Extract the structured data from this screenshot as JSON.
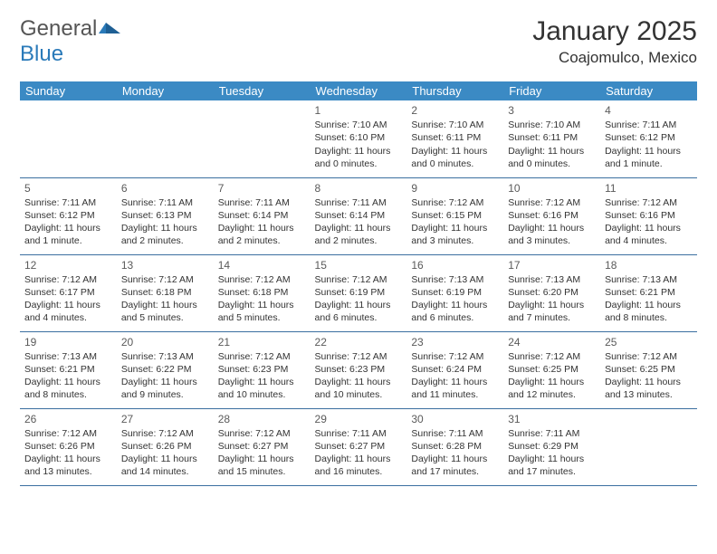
{
  "logo": {
    "word1": "General",
    "word2": "Blue"
  },
  "title": "January 2025",
  "location": "Coajomulco, Mexico",
  "colors": {
    "header_bg": "#3b8ac4",
    "header_text": "#ffffff",
    "rule": "#3b6fa0",
    "logo_gray": "#555555",
    "logo_blue": "#2a7ab9",
    "body_text": "#333333"
  },
  "weekdays": [
    "Sunday",
    "Monday",
    "Tuesday",
    "Wednesday",
    "Thursday",
    "Friday",
    "Saturday"
  ],
  "weeks": [
    [
      null,
      null,
      null,
      {
        "n": "1",
        "sr": "Sunrise: 7:10 AM",
        "ss": "Sunset: 6:10 PM",
        "d1": "Daylight: 11 hours",
        "d2": "and 0 minutes."
      },
      {
        "n": "2",
        "sr": "Sunrise: 7:10 AM",
        "ss": "Sunset: 6:11 PM",
        "d1": "Daylight: 11 hours",
        "d2": "and 0 minutes."
      },
      {
        "n": "3",
        "sr": "Sunrise: 7:10 AM",
        "ss": "Sunset: 6:11 PM",
        "d1": "Daylight: 11 hours",
        "d2": "and 0 minutes."
      },
      {
        "n": "4",
        "sr": "Sunrise: 7:11 AM",
        "ss": "Sunset: 6:12 PM",
        "d1": "Daylight: 11 hours",
        "d2": "and 1 minute."
      }
    ],
    [
      {
        "n": "5",
        "sr": "Sunrise: 7:11 AM",
        "ss": "Sunset: 6:12 PM",
        "d1": "Daylight: 11 hours",
        "d2": "and 1 minute."
      },
      {
        "n": "6",
        "sr": "Sunrise: 7:11 AM",
        "ss": "Sunset: 6:13 PM",
        "d1": "Daylight: 11 hours",
        "d2": "and 2 minutes."
      },
      {
        "n": "7",
        "sr": "Sunrise: 7:11 AM",
        "ss": "Sunset: 6:14 PM",
        "d1": "Daylight: 11 hours",
        "d2": "and 2 minutes."
      },
      {
        "n": "8",
        "sr": "Sunrise: 7:11 AM",
        "ss": "Sunset: 6:14 PM",
        "d1": "Daylight: 11 hours",
        "d2": "and 2 minutes."
      },
      {
        "n": "9",
        "sr": "Sunrise: 7:12 AM",
        "ss": "Sunset: 6:15 PM",
        "d1": "Daylight: 11 hours",
        "d2": "and 3 minutes."
      },
      {
        "n": "10",
        "sr": "Sunrise: 7:12 AM",
        "ss": "Sunset: 6:16 PM",
        "d1": "Daylight: 11 hours",
        "d2": "and 3 minutes."
      },
      {
        "n": "11",
        "sr": "Sunrise: 7:12 AM",
        "ss": "Sunset: 6:16 PM",
        "d1": "Daylight: 11 hours",
        "d2": "and 4 minutes."
      }
    ],
    [
      {
        "n": "12",
        "sr": "Sunrise: 7:12 AM",
        "ss": "Sunset: 6:17 PM",
        "d1": "Daylight: 11 hours",
        "d2": "and 4 minutes."
      },
      {
        "n": "13",
        "sr": "Sunrise: 7:12 AM",
        "ss": "Sunset: 6:18 PM",
        "d1": "Daylight: 11 hours",
        "d2": "and 5 minutes."
      },
      {
        "n": "14",
        "sr": "Sunrise: 7:12 AM",
        "ss": "Sunset: 6:18 PM",
        "d1": "Daylight: 11 hours",
        "d2": "and 5 minutes."
      },
      {
        "n": "15",
        "sr": "Sunrise: 7:12 AM",
        "ss": "Sunset: 6:19 PM",
        "d1": "Daylight: 11 hours",
        "d2": "and 6 minutes."
      },
      {
        "n": "16",
        "sr": "Sunrise: 7:13 AM",
        "ss": "Sunset: 6:19 PM",
        "d1": "Daylight: 11 hours",
        "d2": "and 6 minutes."
      },
      {
        "n": "17",
        "sr": "Sunrise: 7:13 AM",
        "ss": "Sunset: 6:20 PM",
        "d1": "Daylight: 11 hours",
        "d2": "and 7 minutes."
      },
      {
        "n": "18",
        "sr": "Sunrise: 7:13 AM",
        "ss": "Sunset: 6:21 PM",
        "d1": "Daylight: 11 hours",
        "d2": "and 8 minutes."
      }
    ],
    [
      {
        "n": "19",
        "sr": "Sunrise: 7:13 AM",
        "ss": "Sunset: 6:21 PM",
        "d1": "Daylight: 11 hours",
        "d2": "and 8 minutes."
      },
      {
        "n": "20",
        "sr": "Sunrise: 7:13 AM",
        "ss": "Sunset: 6:22 PM",
        "d1": "Daylight: 11 hours",
        "d2": "and 9 minutes."
      },
      {
        "n": "21",
        "sr": "Sunrise: 7:12 AM",
        "ss": "Sunset: 6:23 PM",
        "d1": "Daylight: 11 hours",
        "d2": "and 10 minutes."
      },
      {
        "n": "22",
        "sr": "Sunrise: 7:12 AM",
        "ss": "Sunset: 6:23 PM",
        "d1": "Daylight: 11 hours",
        "d2": "and 10 minutes."
      },
      {
        "n": "23",
        "sr": "Sunrise: 7:12 AM",
        "ss": "Sunset: 6:24 PM",
        "d1": "Daylight: 11 hours",
        "d2": "and 11 minutes."
      },
      {
        "n": "24",
        "sr": "Sunrise: 7:12 AM",
        "ss": "Sunset: 6:25 PM",
        "d1": "Daylight: 11 hours",
        "d2": "and 12 minutes."
      },
      {
        "n": "25",
        "sr": "Sunrise: 7:12 AM",
        "ss": "Sunset: 6:25 PM",
        "d1": "Daylight: 11 hours",
        "d2": "and 13 minutes."
      }
    ],
    [
      {
        "n": "26",
        "sr": "Sunrise: 7:12 AM",
        "ss": "Sunset: 6:26 PM",
        "d1": "Daylight: 11 hours",
        "d2": "and 13 minutes."
      },
      {
        "n": "27",
        "sr": "Sunrise: 7:12 AM",
        "ss": "Sunset: 6:26 PM",
        "d1": "Daylight: 11 hours",
        "d2": "and 14 minutes."
      },
      {
        "n": "28",
        "sr": "Sunrise: 7:12 AM",
        "ss": "Sunset: 6:27 PM",
        "d1": "Daylight: 11 hours",
        "d2": "and 15 minutes."
      },
      {
        "n": "29",
        "sr": "Sunrise: 7:11 AM",
        "ss": "Sunset: 6:27 PM",
        "d1": "Daylight: 11 hours",
        "d2": "and 16 minutes."
      },
      {
        "n": "30",
        "sr": "Sunrise: 7:11 AM",
        "ss": "Sunset: 6:28 PM",
        "d1": "Daylight: 11 hours",
        "d2": "and 17 minutes."
      },
      {
        "n": "31",
        "sr": "Sunrise: 7:11 AM",
        "ss": "Sunset: 6:29 PM",
        "d1": "Daylight: 11 hours",
        "d2": "and 17 minutes."
      },
      null
    ]
  ]
}
